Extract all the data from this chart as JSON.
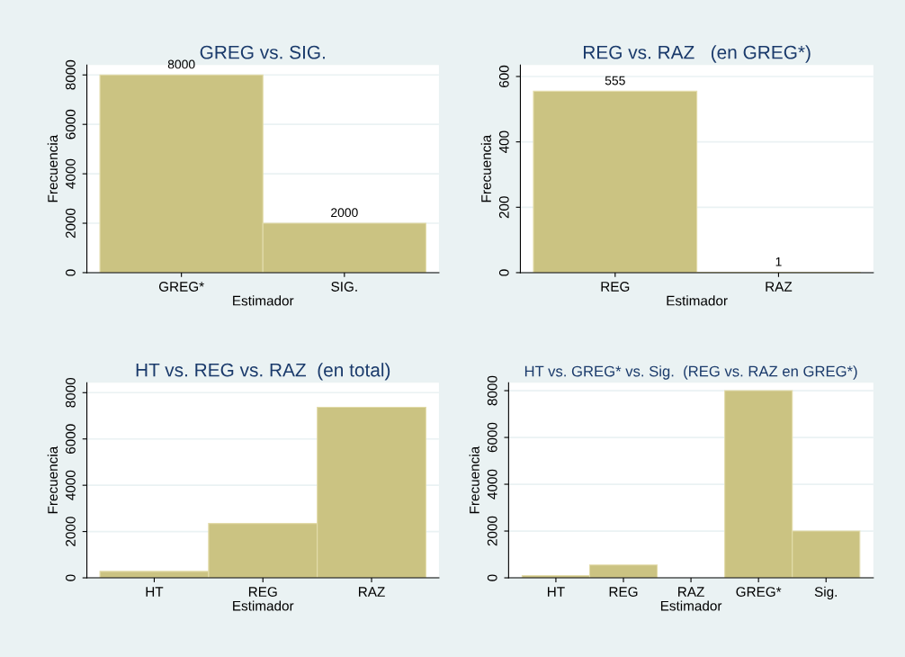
{
  "chart_data": [
    {
      "type": "bar",
      "title": "GREG vs. SIG.",
      "xlabel": "Estimador",
      "ylabel": "Frecuencia",
      "categories": [
        "GREG*",
        "SIG."
      ],
      "values": [
        8000,
        2000
      ],
      "color": "#cbc382",
      "ylim": [
        0,
        8400
      ],
      "yticks": [
        0,
        2000,
        4000,
        6000,
        8000
      ],
      "grid": "y",
      "data_labels": true
    },
    {
      "type": "bar",
      "title": "REG vs. RAZ   (en GREG*)",
      "xlabel": "Estimador",
      "ylabel": "Frecuencia",
      "categories": [
        "REG",
        "RAZ"
      ],
      "values": [
        555,
        1
      ],
      "color": "#cbc382",
      "ylim": [
        0,
        635
      ],
      "yticks": [
        0,
        200,
        400,
        600
      ],
      "grid": "y",
      "data_labels": true
    },
    {
      "type": "bar",
      "title": "HT vs. REG vs. RAZ  (en total)",
      "xlabel": "Estimador",
      "ylabel": "Frecuencia",
      "categories": [
        "HT",
        "REG",
        "RAZ"
      ],
      "values": [
        280,
        2350,
        7370
      ],
      "color": "#cbc382",
      "ylim": [
        0,
        8430
      ],
      "yticks": [
        0,
        2000,
        4000,
        6000,
        8000
      ],
      "grid": "y"
    },
    {
      "type": "bar",
      "title": "HT vs. GREG* vs. Sig.  (REG vs. RAZ en GREG*)",
      "xlabel": "Estimador",
      "ylabel": "Frecuencia",
      "categories": [
        "HT",
        "REG",
        "RAZ",
        "GREG*",
        "Sig."
      ],
      "values": [
        100,
        550,
        null,
        8000,
        2000
      ],
      "color": "#cbc382",
      "ylim": [
        0,
        8340
      ],
      "yticks": [
        0,
        2000,
        4000,
        6000,
        8000
      ],
      "grid": "y"
    }
  ]
}
